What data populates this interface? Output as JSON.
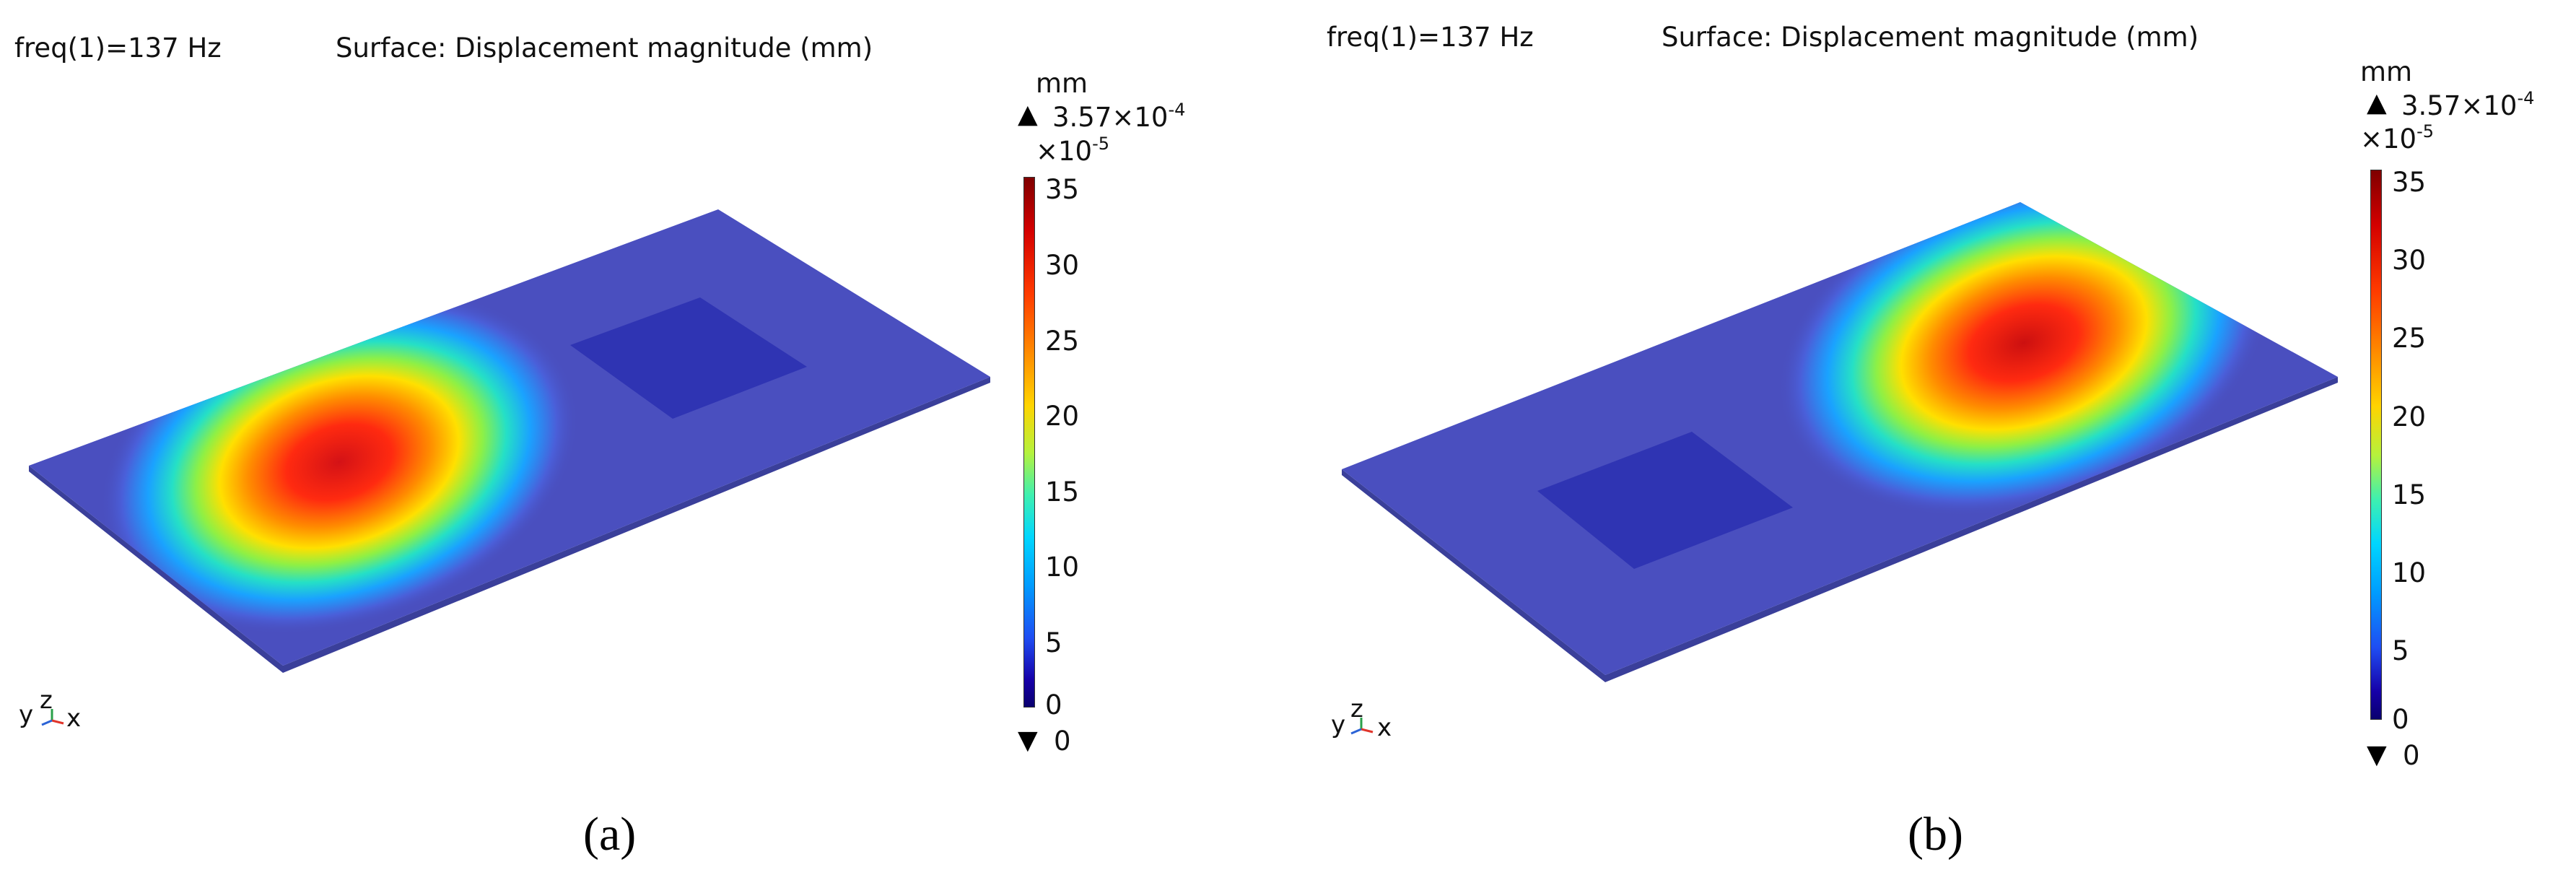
{
  "panels": [
    {
      "freq_label": "freq(1)=137 Hz",
      "surface_label": "Surface: Displacement magnitude (mm)",
      "unit": "mm",
      "max_value": "3.57×10",
      "max_exp": "-4",
      "scale": "×10",
      "scale_exp": "-5",
      "min_value": "0",
      "ticks": [
        "35",
        "30",
        "25",
        "20",
        "15",
        "10",
        "5",
        "0"
      ],
      "axis_y": "y",
      "axis_z": "z",
      "axis_x": "x",
      "caption": "(a)"
    },
    {
      "freq_label": "freq(1)=137 Hz",
      "surface_label": "Surface: Displacement magnitude (mm)",
      "unit": "mm",
      "max_value": "3.57×10",
      "max_exp": "-4",
      "scale": "×10",
      "scale_exp": "-5",
      "min_value": "0",
      "ticks": [
        "35",
        "30",
        "25",
        "20",
        "15",
        "10",
        "5",
        "0"
      ],
      "axis_y": "y",
      "axis_z": "z",
      "axis_x": "x",
      "caption": "(b)"
    }
  ],
  "colors": {
    "plate": "#4a4fbf",
    "plate_edge": "#3a3f9a",
    "patch": "#2a2fb0",
    "hot": "#e8121a"
  }
}
